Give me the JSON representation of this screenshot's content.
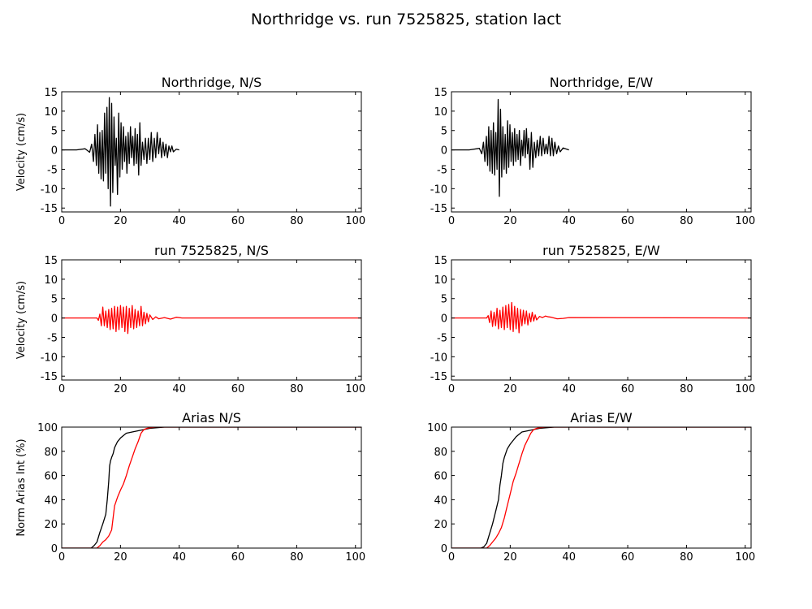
{
  "figure": {
    "title": "Northridge vs. run 7525825, station lact"
  },
  "chart_data": [
    {
      "id": "ns-obs",
      "type": "line",
      "title": "Northridge, N/S",
      "ylabel": "Velocity (cm/s)",
      "xlim": [
        0,
        102
      ],
      "ylim": [
        -16,
        15
      ],
      "xticks": [
        0,
        20,
        40,
        60,
        80,
        100
      ],
      "yticks": [
        -15,
        -10,
        -5,
        0,
        5,
        10,
        15
      ],
      "series": [
        {
          "color": "#000000",
          "x": [
            0,
            5,
            8,
            9.5,
            10.2,
            10.8,
            11.3,
            11.8,
            12.2,
            12.6,
            13.0,
            13.4,
            13.8,
            14.2,
            14.6,
            15.0,
            15.4,
            15.8,
            16.2,
            16.6,
            17.0,
            17.4,
            17.8,
            18.2,
            18.6,
            19.0,
            19.4,
            19.8,
            20.2,
            20.6,
            21.0,
            21.4,
            21.8,
            22.2,
            22.6,
            23.0,
            23.4,
            23.8,
            24.2,
            24.6,
            25.0,
            25.4,
            25.8,
            26.2,
            26.6,
            27.0,
            27.5,
            28.0,
            28.5,
            29.0,
            29.5,
            30.0,
            30.5,
            31.0,
            31.5,
            32.0,
            32.5,
            33.0,
            33.5,
            34.0,
            34.5,
            35.0,
            35.5,
            36.0,
            36.5,
            37.0,
            37.5,
            38.0,
            39.0,
            40.0
          ],
          "y": [
            0,
            0,
            0.3,
            -0.6,
            1.5,
            -3.0,
            4.0,
            -4.0,
            6.5,
            -6.0,
            4.5,
            -7.5,
            5.0,
            -8.0,
            9.5,
            -6.0,
            11.0,
            -10.0,
            13.5,
            -14.5,
            12.0,
            -11.0,
            8.5,
            -4.0,
            3.0,
            -11.5,
            9.5,
            -7.0,
            7.0,
            -5.0,
            6.0,
            -3.0,
            3.5,
            -6.0,
            4.5,
            -3.5,
            6.0,
            -2.0,
            3.5,
            -4.0,
            5.5,
            -3.5,
            4.0,
            -6.5,
            7.0,
            -4.0,
            2.0,
            -2.5,
            3.0,
            -3.5,
            3.0,
            -2.5,
            4.5,
            -3.0,
            3.0,
            -2.0,
            4.5,
            -1.0,
            3.0,
            -2.0,
            2.0,
            -1.5,
            1.5,
            -2.0,
            1.0,
            -0.5,
            1.0,
            -0.5,
            0.2,
            0
          ]
        }
      ]
    },
    {
      "id": "ew-obs",
      "type": "line",
      "title": "Northridge, E/W",
      "ylabel": "",
      "xlim": [
        0,
        102
      ],
      "ylim": [
        -16,
        15
      ],
      "xticks": [
        0,
        20,
        40,
        60,
        80,
        100
      ],
      "yticks": [
        -15,
        -10,
        -5,
        0,
        5,
        10,
        15
      ],
      "series": [
        {
          "color": "#000000",
          "x": [
            0,
            6,
            9.5,
            10.3,
            10.9,
            11.4,
            11.9,
            12.3,
            12.7,
            13.1,
            13.5,
            13.9,
            14.3,
            14.7,
            15.1,
            15.5,
            15.9,
            16.3,
            16.7,
            17.1,
            17.5,
            17.9,
            18.3,
            18.7,
            19.1,
            19.5,
            19.9,
            20.3,
            20.7,
            21.1,
            21.5,
            21.9,
            22.3,
            22.7,
            23.1,
            23.5,
            23.9,
            24.3,
            24.7,
            25.1,
            25.5,
            25.9,
            26.3,
            26.7,
            27.2,
            27.7,
            28.2,
            28.7,
            29.2,
            29.7,
            30.2,
            30.7,
            31.2,
            31.7,
            32.2,
            32.7,
            33.2,
            33.7,
            34.2,
            34.7,
            35.2,
            35.8,
            36.4,
            37.0,
            38.0,
            40.0
          ],
          "y": [
            0,
            0,
            0.4,
            -1.0,
            2.0,
            -3.0,
            3.5,
            -4.0,
            6.0,
            -5.5,
            5.0,
            -6.0,
            7.0,
            -6.5,
            4.5,
            -5.0,
            13.0,
            -12.0,
            10.5,
            -7.0,
            6.0,
            -5.0,
            4.0,
            -6.0,
            7.5,
            -4.5,
            6.5,
            -3.0,
            4.5,
            -4.0,
            5.5,
            -3.0,
            4.0,
            -2.5,
            5.0,
            -4.0,
            2.5,
            -1.5,
            5.0,
            -2.0,
            5.5,
            -1.0,
            3.0,
            -5.0,
            4.5,
            -4.5,
            2.0,
            -2.0,
            2.5,
            -1.5,
            3.5,
            -1.5,
            3.0,
            -1.0,
            1.5,
            -1.0,
            3.5,
            -1.5,
            3.0,
            -1.5,
            2.0,
            -1.0,
            1.0,
            -0.5,
            0.5,
            0
          ]
        }
      ]
    },
    {
      "id": "ns-syn",
      "type": "line",
      "title": "run 7525825, N/S",
      "ylabel": "Velocity (cm/s)",
      "xlim": [
        0,
        102
      ],
      "ylim": [
        -16,
        15
      ],
      "xticks": [
        0,
        20,
        40,
        60,
        80,
        100
      ],
      "yticks": [
        -15,
        -10,
        -5,
        0,
        5,
        10,
        15
      ],
      "series": [
        {
          "color": "#ff0000",
          "x": [
            0,
            12.0,
            12.5,
            13.0,
            13.5,
            14.0,
            14.5,
            15.0,
            15.5,
            16.0,
            16.5,
            17.0,
            17.5,
            18.0,
            18.5,
            19.0,
            19.5,
            20.0,
            20.5,
            21.0,
            21.5,
            22.0,
            22.5,
            23.0,
            23.5,
            24.0,
            24.5,
            25.0,
            25.5,
            26.0,
            26.5,
            27.0,
            27.5,
            28.0,
            28.5,
            29.0,
            29.5,
            30.0,
            31.0,
            32.0,
            33.0,
            35.0,
            37.0,
            39.0,
            41.0,
            102
          ],
          "y": [
            0,
            0,
            -0.6,
            1.0,
            -2.0,
            2.8,
            -2.0,
            1.8,
            -2.5,
            2.2,
            -3.0,
            2.5,
            -2.8,
            3.0,
            -3.5,
            2.8,
            -3.0,
            3.2,
            -2.5,
            2.8,
            -3.5,
            3.0,
            -4.0,
            2.5,
            -2.5,
            3.2,
            -2.8,
            2.2,
            -2.5,
            1.8,
            -2.0,
            3.0,
            -2.0,
            1.5,
            -1.5,
            1.2,
            -1.0,
            0.8,
            -0.4,
            0.3,
            -0.2,
            0.1,
            -0.3,
            0.2,
            0,
            0
          ]
        }
      ]
    },
    {
      "id": "ew-syn",
      "type": "line",
      "title": "run 7525825, E/W",
      "ylabel": "",
      "xlim": [
        0,
        102
      ],
      "ylim": [
        -16,
        15
      ],
      "xticks": [
        0,
        20,
        40,
        60,
        80,
        100
      ],
      "yticks": [
        -15,
        -10,
        -5,
        0,
        5,
        10,
        15
      ],
      "series": [
        {
          "color": "#ff0000",
          "x": [
            0,
            12.0,
            12.5,
            13.0,
            13.5,
            14.0,
            14.5,
            15.0,
            15.5,
            16.0,
            16.5,
            17.0,
            17.5,
            18.0,
            18.5,
            19.0,
            19.5,
            20.0,
            20.5,
            21.0,
            21.5,
            22.0,
            22.5,
            23.0,
            23.5,
            24.0,
            24.5,
            25.0,
            25.5,
            26.0,
            26.5,
            27.0,
            27.5,
            28.0,
            28.5,
            29.0,
            30.0,
            31.0,
            32.0,
            33.0,
            34.0,
            36.0,
            38.0,
            40.0,
            102
          ],
          "y": [
            0,
            0,
            0.6,
            -1.2,
            1.8,
            -2.2,
            1.5,
            -2.0,
            2.5,
            -2.8,
            2.0,
            -2.5,
            2.8,
            -3.0,
            3.2,
            -2.5,
            3.5,
            -3.0,
            4.0,
            -3.5,
            3.0,
            -2.8,
            2.5,
            -3.8,
            2.2,
            -2.0,
            2.0,
            -1.5,
            1.8,
            -1.8,
            1.2,
            -1.0,
            1.5,
            -0.8,
            0.8,
            -0.5,
            0.4,
            0.1,
            0.5,
            0.3,
            0.2,
            -0.2,
            -0.1,
            0.1,
            0
          ]
        }
      ]
    },
    {
      "id": "ns-arias",
      "type": "line",
      "title": "Arias N/S",
      "ylabel": "Norm Arias Int (%)",
      "xlim": [
        0,
        102
      ],
      "ylim": [
        0,
        100
      ],
      "xticks": [
        0,
        20,
        40,
        60,
        80,
        100
      ],
      "yticks": [
        0,
        20,
        40,
        60,
        80,
        100
      ],
      "series": [
        {
          "color": "#000000",
          "x": [
            0,
            10,
            11,
            12,
            13,
            14,
            15,
            15.5,
            16,
            16.3,
            16.6,
            17,
            17.5,
            18,
            19,
            20,
            21,
            22,
            24,
            26,
            28,
            30,
            35,
            40,
            102
          ],
          "y": [
            0,
            0,
            2,
            5,
            13,
            20,
            28,
            40,
            55,
            68,
            72,
            75,
            78,
            83,
            88,
            91,
            93,
            95,
            96,
            97,
            98,
            99,
            100,
            100,
            100
          ]
        },
        {
          "color": "#ff0000",
          "x": [
            0,
            12,
            13,
            14,
            15,
            16,
            17,
            17.5,
            18,
            19,
            20,
            21,
            22,
            23,
            24,
            25,
            26,
            27,
            28,
            29,
            30,
            32,
            35,
            40,
            102
          ],
          "y": [
            0,
            0,
            2,
            5,
            7,
            10,
            15,
            25,
            35,
            42,
            48,
            53,
            60,
            68,
            75,
            82,
            88,
            95,
            98,
            99,
            99.5,
            100,
            100,
            100,
            100
          ]
        }
      ]
    },
    {
      "id": "ew-arias",
      "type": "line",
      "title": "Arias E/W",
      "ylabel": "",
      "xlim": [
        0,
        102
      ],
      "ylim": [
        0,
        100
      ],
      "xticks": [
        0,
        20,
        40,
        60,
        80,
        100
      ],
      "yticks": [
        0,
        20,
        40,
        60,
        80,
        100
      ],
      "series": [
        {
          "color": "#000000",
          "x": [
            0,
            10,
            11,
            12,
            13,
            14,
            15,
            16,
            16.5,
            17,
            17.5,
            18,
            19,
            20,
            21,
            22,
            23,
            24,
            26,
            28,
            30,
            35,
            40,
            102
          ],
          "y": [
            0,
            0,
            1,
            4,
            12,
            20,
            30,
            40,
            52,
            60,
            70,
            75,
            82,
            86,
            89,
            92,
            94,
            96,
            97,
            98,
            99,
            100,
            100,
            100
          ]
        },
        {
          "color": "#ff0000",
          "x": [
            0,
            12,
            13,
            14,
            15,
            16,
            17,
            18,
            19,
            20,
            21,
            22,
            23,
            24,
            25,
            26,
            27,
            28,
            29,
            30,
            32,
            35,
            40,
            102
          ],
          "y": [
            0,
            0,
            2,
            5,
            8,
            12,
            17,
            25,
            35,
            45,
            55,
            62,
            70,
            78,
            85,
            90,
            95,
            98,
            99,
            99.5,
            100,
            100,
            100,
            100
          ]
        }
      ]
    }
  ]
}
